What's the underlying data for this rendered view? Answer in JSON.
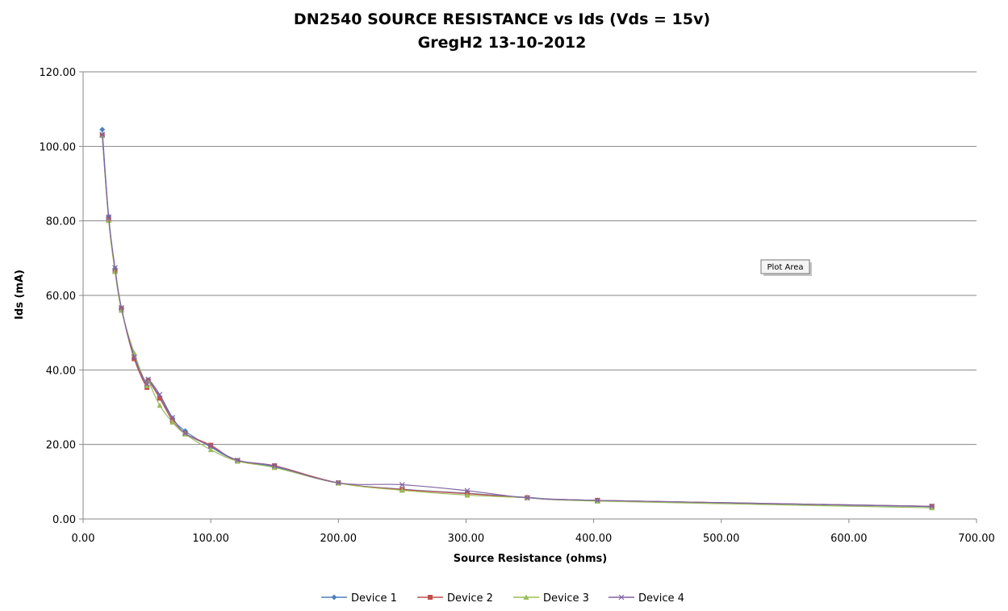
{
  "chart_data": {
    "type": "line",
    "title": "DN2540 SOURCE RESISTANCE vs Ids (Vds = 15v)",
    "subtitle": "GregH2 13-10-2012",
    "xlabel": "Source Resistance (ohms)",
    "ylabel": "Ids (mA)",
    "xlim": [
      0,
      700
    ],
    "ylim": [
      0,
      120
    ],
    "x_ticks": [
      0,
      100,
      200,
      300,
      400,
      500,
      600,
      700
    ],
    "y_ticks": [
      0,
      20,
      40,
      60,
      80,
      100,
      120
    ],
    "x_tick_labels": [
      "0.00",
      "100.00",
      "200.00",
      "300.00",
      "400.00",
      "500.00",
      "600.00",
      "700.00"
    ],
    "y_tick_labels": [
      "0.00",
      "20.00",
      "40.00",
      "60.00",
      "80.00",
      "100.00",
      "120.00"
    ],
    "grid": "horizontal",
    "legend_position": "bottom",
    "tooltip": "Plot Area",
    "series": [
      {
        "name": "Device 1",
        "color": "#4F81BD",
        "marker": "diamond",
        "points": [
          [
            15,
            104.5
          ],
          [
            20,
            81.2
          ],
          [
            25,
            67.2
          ],
          [
            30,
            56.5
          ],
          [
            40,
            44.0
          ],
          [
            50,
            35.5
          ],
          [
            51,
            37.3
          ],
          [
            60,
            32.8
          ],
          [
            70,
            27.0
          ],
          [
            80,
            23.6
          ],
          [
            100,
            19.3
          ],
          [
            121,
            15.7
          ],
          [
            150,
            14.0
          ],
          [
            200,
            9.7
          ],
          [
            250,
            8.0
          ],
          [
            301,
            6.9
          ],
          [
            348,
            5.8
          ],
          [
            403,
            5.0
          ],
          [
            665,
            3.3
          ]
        ]
      },
      {
        "name": "Device 2",
        "color": "#C0504D",
        "marker": "square",
        "points": [
          [
            15,
            102.9
          ],
          [
            20,
            80.4
          ],
          [
            25,
            66.5
          ],
          [
            30,
            56.4
          ],
          [
            40,
            43.0
          ],
          [
            50,
            35.3
          ],
          [
            51,
            37.1
          ],
          [
            60,
            32.4
          ],
          [
            70,
            26.4
          ],
          [
            80,
            22.9
          ],
          [
            100,
            19.8
          ],
          [
            121,
            15.6
          ],
          [
            150,
            14.3
          ],
          [
            200,
            9.7
          ],
          [
            250,
            7.9
          ],
          [
            301,
            6.8
          ],
          [
            348,
            5.7
          ],
          [
            403,
            5.0
          ],
          [
            665,
            3.4
          ]
        ]
      },
      {
        "name": "Device 3",
        "color": "#9BBB59",
        "marker": "triangle",
        "points": [
          [
            15,
            102.9
          ],
          [
            20,
            80.1
          ],
          [
            25,
            66.4
          ],
          [
            30,
            56.0
          ],
          [
            40,
            44.6
          ],
          [
            50,
            35.8
          ],
          [
            51,
            37.0
          ],
          [
            60,
            30.5
          ],
          [
            70,
            26.0
          ],
          [
            80,
            22.8
          ],
          [
            100,
            18.6
          ],
          [
            121,
            15.5
          ],
          [
            150,
            13.8
          ],
          [
            200,
            9.6
          ],
          [
            250,
            7.7
          ],
          [
            301,
            6.4
          ],
          [
            348,
            5.7
          ],
          [
            403,
            4.8
          ],
          [
            665,
            3.0
          ]
        ]
      },
      {
        "name": "Device 4",
        "color": "#8064A2",
        "marker": "x",
        "points": [
          [
            15,
            103.2
          ],
          [
            20,
            81.0
          ],
          [
            25,
            67.4
          ],
          [
            30,
            56.7
          ],
          [
            40,
            43.5
          ],
          [
            50,
            36.2
          ],
          [
            51,
            37.5
          ],
          [
            60,
            33.4
          ],
          [
            70,
            27.2
          ],
          [
            80,
            23.0
          ],
          [
            100,
            19.5
          ],
          [
            121,
            15.8
          ],
          [
            150,
            14.2
          ],
          [
            200,
            9.7
          ],
          [
            250,
            9.2
          ],
          [
            301,
            7.6
          ],
          [
            348,
            5.7
          ],
          [
            403,
            5.0
          ],
          [
            665,
            3.4
          ]
        ]
      }
    ]
  }
}
